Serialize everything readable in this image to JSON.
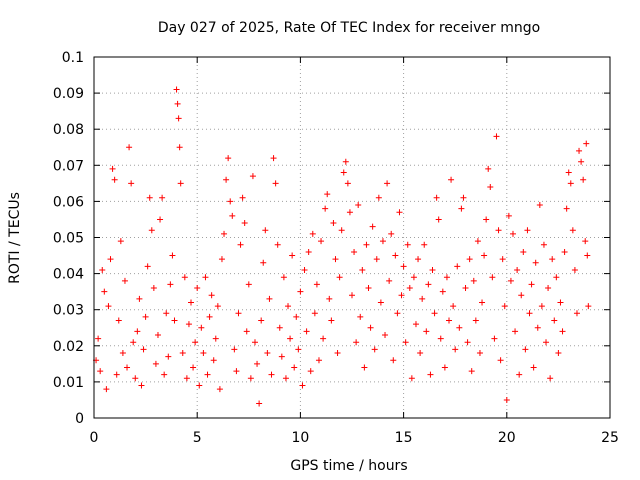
{
  "chart_data": {
    "type": "scatter",
    "title": "Day 027 of 2025, Rate Of TEC Index for receiver mngo",
    "xlabel": "GPS time / hours",
    "ylabel": "ROTI / TECUs",
    "xlim": [
      0,
      25
    ],
    "ylim": [
      0,
      0.1
    ],
    "x_ticks": [
      0,
      5,
      10,
      15,
      20,
      25
    ],
    "x_tick_labels": [
      "0",
      "5",
      "10",
      "15",
      "20",
      "25"
    ],
    "y_ticks": [
      0,
      0.01,
      0.02,
      0.03,
      0.04,
      0.05,
      0.06,
      0.07,
      0.08,
      0.09,
      0.1
    ],
    "y_tick_labels": [
      "0",
      "0.01",
      "0.02",
      "0.03",
      "0.04",
      "0.05",
      "0.06",
      "0.07",
      "0.08",
      "0.09",
      "0.1"
    ],
    "grid": true,
    "marker": "+",
    "series": [
      {
        "name": "ROTI",
        "color": "#ff0000",
        "points": [
          [
            0.1,
            0.016
          ],
          [
            0.2,
            0.022
          ],
          [
            0.3,
            0.013
          ],
          [
            0.4,
            0.041
          ],
          [
            0.5,
            0.035
          ],
          [
            0.6,
            0.008
          ],
          [
            0.7,
            0.031
          ],
          [
            0.8,
            0.044
          ],
          [
            0.9,
            0.069
          ],
          [
            1.0,
            0.066
          ],
          [
            1.1,
            0.012
          ],
          [
            1.2,
            0.027
          ],
          [
            1.3,
            0.049
          ],
          [
            1.4,
            0.018
          ],
          [
            1.5,
            0.038
          ],
          [
            1.6,
            0.014
          ],
          [
            1.7,
            0.075
          ],
          [
            1.8,
            0.065
          ],
          [
            1.9,
            0.021
          ],
          [
            2.0,
            0.011
          ],
          [
            2.1,
            0.024
          ],
          [
            2.2,
            0.033
          ],
          [
            2.3,
            0.009
          ],
          [
            2.4,
            0.019
          ],
          [
            2.5,
            0.028
          ],
          [
            2.6,
            0.042
          ],
          [
            2.7,
            0.061
          ],
          [
            2.8,
            0.052
          ],
          [
            2.9,
            0.036
          ],
          [
            3.0,
            0.015
          ],
          [
            3.1,
            0.023
          ],
          [
            3.2,
            0.055
          ],
          [
            3.3,
            0.061
          ],
          [
            3.4,
            0.012
          ],
          [
            3.5,
            0.029
          ],
          [
            3.6,
            0.017
          ],
          [
            3.7,
            0.037
          ],
          [
            3.8,
            0.045
          ],
          [
            3.9,
            0.027
          ],
          [
            4.0,
            0.091
          ],
          [
            4.05,
            0.087
          ],
          [
            4.1,
            0.083
          ],
          [
            4.15,
            0.075
          ],
          [
            4.2,
            0.065
          ],
          [
            4.3,
            0.018
          ],
          [
            4.4,
            0.039
          ],
          [
            4.5,
            0.011
          ],
          [
            4.6,
            0.026
          ],
          [
            4.7,
            0.032
          ],
          [
            4.8,
            0.014
          ],
          [
            4.9,
            0.021
          ],
          [
            5.0,
            0.036
          ],
          [
            5.1,
            0.009
          ],
          [
            5.2,
            0.025
          ],
          [
            5.3,
            0.018
          ],
          [
            5.4,
            0.039
          ],
          [
            5.5,
            0.012
          ],
          [
            5.6,
            0.028
          ],
          [
            5.7,
            0.034
          ],
          [
            5.8,
            0.016
          ],
          [
            5.9,
            0.022
          ],
          [
            6.0,
            0.031
          ],
          [
            6.1,
            0.008
          ],
          [
            6.2,
            0.044
          ],
          [
            6.3,
            0.051
          ],
          [
            6.4,
            0.066
          ],
          [
            6.5,
            0.072
          ],
          [
            6.6,
            0.06
          ],
          [
            6.7,
            0.056
          ],
          [
            6.8,
            0.019
          ],
          [
            6.9,
            0.013
          ],
          [
            7.0,
            0.029
          ],
          [
            7.1,
            0.048
          ],
          [
            7.2,
            0.061
          ],
          [
            7.3,
            0.054
          ],
          [
            7.4,
            0.024
          ],
          [
            7.5,
            0.037
          ],
          [
            7.6,
            0.011
          ],
          [
            7.7,
            0.067
          ],
          [
            7.8,
            0.021
          ],
          [
            7.9,
            0.015
          ],
          [
            8.0,
            0.004
          ],
          [
            8.1,
            0.027
          ],
          [
            8.2,
            0.043
          ],
          [
            8.3,
            0.052
          ],
          [
            8.4,
            0.018
          ],
          [
            8.5,
            0.033
          ],
          [
            8.6,
            0.012
          ],
          [
            8.7,
            0.072
          ],
          [
            8.8,
            0.065
          ],
          [
            8.9,
            0.048
          ],
          [
            9.0,
            0.025
          ],
          [
            9.1,
            0.017
          ],
          [
            9.2,
            0.039
          ],
          [
            9.3,
            0.011
          ],
          [
            9.4,
            0.031
          ],
          [
            9.5,
            0.022
          ],
          [
            9.6,
            0.045
          ],
          [
            9.7,
            0.014
          ],
          [
            9.8,
            0.028
          ],
          [
            9.9,
            0.019
          ],
          [
            10.0,
            0.035
          ],
          [
            10.1,
            0.009
          ],
          [
            10.2,
            0.041
          ],
          [
            10.3,
            0.024
          ],
          [
            10.4,
            0.046
          ],
          [
            10.5,
            0.013
          ],
          [
            10.6,
            0.051
          ],
          [
            10.7,
            0.029
          ],
          [
            10.8,
            0.037
          ],
          [
            10.9,
            0.016
          ],
          [
            11.0,
            0.049
          ],
          [
            11.1,
            0.022
          ],
          [
            11.2,
            0.058
          ],
          [
            11.3,
            0.062
          ],
          [
            11.4,
            0.033
          ],
          [
            11.5,
            0.027
          ],
          [
            11.6,
            0.054
          ],
          [
            11.7,
            0.044
          ],
          [
            11.8,
            0.018
          ],
          [
            11.9,
            0.039
          ],
          [
            12.0,
            0.052
          ],
          [
            12.1,
            0.068
          ],
          [
            12.2,
            0.071
          ],
          [
            12.3,
            0.065
          ],
          [
            12.4,
            0.057
          ],
          [
            12.5,
            0.034
          ],
          [
            12.6,
            0.046
          ],
          [
            12.7,
            0.021
          ],
          [
            12.8,
            0.059
          ],
          [
            12.9,
            0.028
          ],
          [
            13.0,
            0.041
          ],
          [
            13.1,
            0.014
          ],
          [
            13.2,
            0.048
          ],
          [
            13.3,
            0.036
          ],
          [
            13.4,
            0.025
          ],
          [
            13.5,
            0.053
          ],
          [
            13.6,
            0.019
          ],
          [
            13.7,
            0.044
          ],
          [
            13.8,
            0.061
          ],
          [
            13.9,
            0.032
          ],
          [
            14.0,
            0.049
          ],
          [
            14.1,
            0.023
          ],
          [
            14.2,
            0.065
          ],
          [
            14.3,
            0.038
          ],
          [
            14.4,
            0.051
          ],
          [
            14.5,
            0.016
          ],
          [
            14.6,
            0.045
          ],
          [
            14.7,
            0.029
          ],
          [
            14.8,
            0.057
          ],
          [
            14.9,
            0.034
          ],
          [
            15.0,
            0.042
          ],
          [
            15.1,
            0.021
          ],
          [
            15.2,
            0.048
          ],
          [
            15.3,
            0.036
          ],
          [
            15.4,
            0.011
          ],
          [
            15.5,
            0.039
          ],
          [
            15.6,
            0.026
          ],
          [
            15.7,
            0.044
          ],
          [
            15.8,
            0.018
          ],
          [
            15.9,
            0.033
          ],
          [
            16.0,
            0.048
          ],
          [
            16.1,
            0.024
          ],
          [
            16.2,
            0.037
          ],
          [
            16.3,
            0.012
          ],
          [
            16.4,
            0.041
          ],
          [
            16.5,
            0.029
          ],
          [
            16.6,
            0.061
          ],
          [
            16.7,
            0.055
          ],
          [
            16.8,
            0.022
          ],
          [
            16.9,
            0.035
          ],
          [
            17.0,
            0.014
          ],
          [
            17.1,
            0.039
          ],
          [
            17.2,
            0.027
          ],
          [
            17.3,
            0.066
          ],
          [
            17.4,
            0.031
          ],
          [
            17.5,
            0.019
          ],
          [
            17.6,
            0.042
          ],
          [
            17.7,
            0.025
          ],
          [
            17.8,
            0.058
          ],
          [
            17.9,
            0.061
          ],
          [
            18.0,
            0.036
          ],
          [
            18.1,
            0.021
          ],
          [
            18.2,
            0.044
          ],
          [
            18.3,
            0.013
          ],
          [
            18.4,
            0.038
          ],
          [
            18.5,
            0.027
          ],
          [
            18.6,
            0.049
          ],
          [
            18.7,
            0.018
          ],
          [
            18.8,
            0.032
          ],
          [
            18.9,
            0.045
          ],
          [
            19.0,
            0.055
          ],
          [
            19.1,
            0.069
          ],
          [
            19.2,
            0.064
          ],
          [
            19.3,
            0.039
          ],
          [
            19.4,
            0.022
          ],
          [
            19.5,
            0.078
          ],
          [
            19.6,
            0.052
          ],
          [
            19.7,
            0.016
          ],
          [
            19.8,
            0.044
          ],
          [
            19.9,
            0.031
          ],
          [
            20.0,
            0.005
          ],
          [
            20.1,
            0.056
          ],
          [
            20.2,
            0.038
          ],
          [
            20.3,
            0.051
          ],
          [
            20.4,
            0.024
          ],
          [
            20.5,
            0.041
          ],
          [
            20.6,
            0.012
          ],
          [
            20.7,
            0.034
          ],
          [
            20.8,
            0.046
          ],
          [
            20.9,
            0.019
          ],
          [
            21.0,
            0.052
          ],
          [
            21.1,
            0.029
          ],
          [
            21.2,
            0.037
          ],
          [
            21.3,
            0.014
          ],
          [
            21.4,
            0.043
          ],
          [
            21.5,
            0.025
          ],
          [
            21.6,
            0.059
          ],
          [
            21.7,
            0.031
          ],
          [
            21.8,
            0.048
          ],
          [
            21.9,
            0.021
          ],
          [
            22.0,
            0.036
          ],
          [
            22.1,
            0.011
          ],
          [
            22.2,
            0.044
          ],
          [
            22.3,
            0.027
          ],
          [
            22.4,
            0.039
          ],
          [
            22.5,
            0.018
          ],
          [
            22.6,
            0.032
          ],
          [
            22.7,
            0.024
          ],
          [
            22.8,
            0.046
          ],
          [
            22.9,
            0.058
          ],
          [
            23.0,
            0.068
          ],
          [
            23.1,
            0.065
          ],
          [
            23.2,
            0.052
          ],
          [
            23.3,
            0.041
          ],
          [
            23.4,
            0.029
          ],
          [
            23.5,
            0.074
          ],
          [
            23.6,
            0.071
          ],
          [
            23.7,
            0.066
          ],
          [
            23.8,
            0.049
          ],
          [
            23.85,
            0.076
          ],
          [
            23.9,
            0.045
          ],
          [
            23.95,
            0.031
          ]
        ]
      }
    ]
  }
}
